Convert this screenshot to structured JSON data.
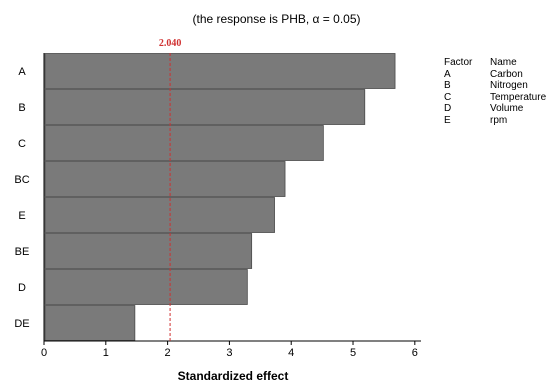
{
  "chart_data": {
    "type": "bar",
    "orientation": "horizontal",
    "subtitle": "(the response is PHB, α = 0.05)",
    "xlabel": "Standardized effect",
    "categories": [
      "A",
      "B",
      "C",
      "BC",
      "E",
      "BE",
      "D",
      "DE"
    ],
    "values": [
      5.68,
      5.19,
      4.52,
      3.9,
      3.73,
      3.36,
      3.29,
      1.47
    ],
    "xlim": [
      0,
      6.1
    ],
    "xticks": [
      "0",
      "1",
      "2",
      "3",
      "4",
      "5",
      "6"
    ],
    "reference_line": {
      "value": 2.04,
      "label": "2.040",
      "color": "#d03030"
    },
    "bar_color": "#7a7a7a",
    "grid": false,
    "legend": {
      "header": [
        "Factor",
        "Name"
      ],
      "rows": [
        [
          "A",
          "Carbon"
        ],
        [
          "B",
          "Nitrogen"
        ],
        [
          "C",
          "Temperature"
        ],
        [
          "D",
          "Volume"
        ],
        [
          "E",
          "rpm"
        ]
      ]
    }
  }
}
